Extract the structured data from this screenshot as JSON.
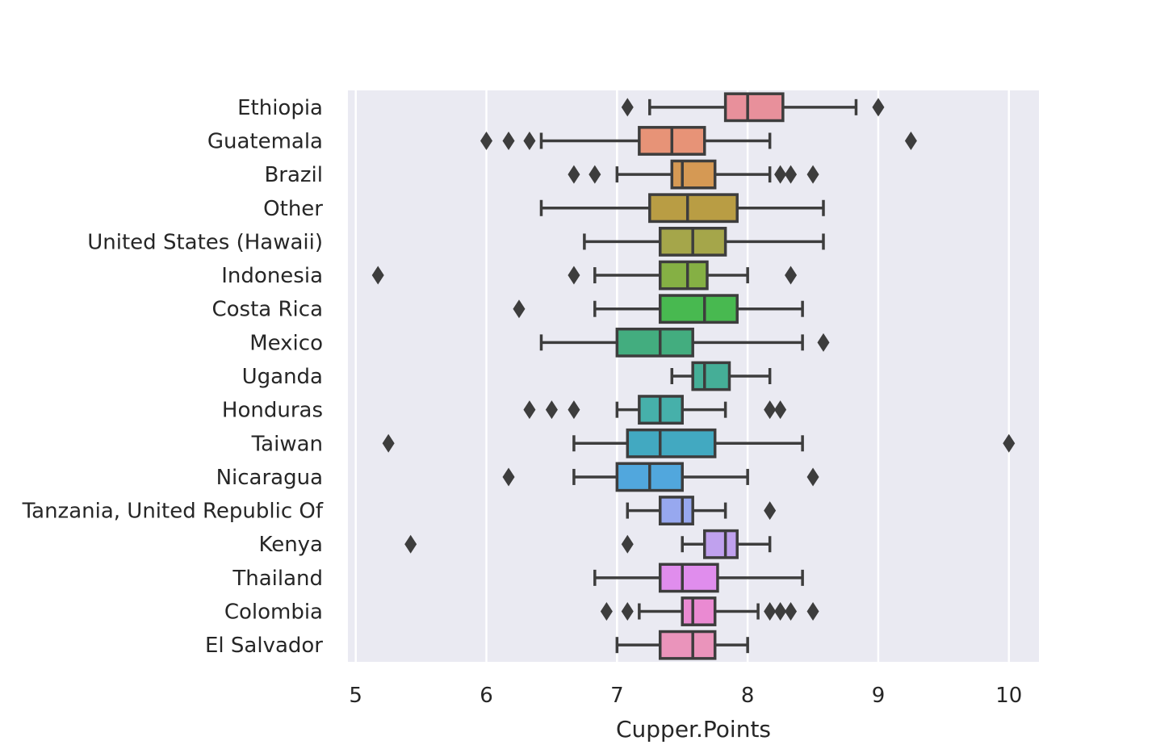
{
  "chart_data": {
    "type": "box",
    "orientation": "horizontal",
    "xlabel": "Cupper.Points",
    "ylabel": "",
    "xlim": [
      4.94,
      10.23
    ],
    "x_ticks": [
      5,
      6,
      7,
      8,
      9,
      10
    ],
    "grid": true,
    "legend": "none",
    "colors": {
      "background": "#eaeaf2",
      "grid": "#ffffff",
      "box_edge": "#3d3d3d",
      "text": "#262626"
    },
    "categories": [
      {
        "name": "Ethiopia",
        "color": "#e8909b",
        "whisker_low": 7.25,
        "q1": 7.83,
        "median": 8.0,
        "q3": 8.27,
        "whisker_high": 8.83,
        "outliers": [
          7.08,
          9.0
        ]
      },
      {
        "name": "Guatemala",
        "color": "#e79377",
        "whisker_low": 6.42,
        "q1": 7.17,
        "median": 7.42,
        "q3": 7.67,
        "whisker_high": 8.17,
        "outliers": [
          6.0,
          6.17,
          6.33,
          9.25
        ]
      },
      {
        "name": "Brazil",
        "color": "#d59954",
        "whisker_low": 7.0,
        "q1": 7.42,
        "median": 7.5,
        "q3": 7.75,
        "whisker_high": 8.17,
        "outliers": [
          6.67,
          6.83,
          8.25,
          8.33,
          8.5
        ]
      },
      {
        "name": "Other",
        "color": "#b99d44",
        "whisker_low": 6.42,
        "q1": 7.25,
        "median": 7.54,
        "q3": 7.92,
        "whisker_high": 8.58,
        "outliers": []
      },
      {
        "name": "United States (Hawaii)",
        "color": "#a5a64a",
        "whisker_low": 6.75,
        "q1": 7.33,
        "median": 7.58,
        "q3": 7.83,
        "whisker_high": 8.58,
        "outliers": []
      },
      {
        "name": "Indonesia",
        "color": "#85b044",
        "whisker_low": 6.83,
        "q1": 7.33,
        "median": 7.54,
        "q3": 7.69,
        "whisker_high": 8.0,
        "outliers": [
          5.17,
          6.67,
          8.33
        ]
      },
      {
        "name": "Costa Rica",
        "color": "#48b950",
        "whisker_low": 6.83,
        "q1": 7.33,
        "median": 7.67,
        "q3": 7.92,
        "whisker_high": 8.42,
        "outliers": [
          6.25
        ]
      },
      {
        "name": "Mexico",
        "color": "#43ad7f",
        "whisker_low": 6.42,
        "q1": 7.0,
        "median": 7.33,
        "q3": 7.58,
        "whisker_high": 8.42,
        "outliers": [
          8.58
        ]
      },
      {
        "name": "Uganda",
        "color": "#45ae97",
        "whisker_low": 7.42,
        "q1": 7.58,
        "median": 7.67,
        "q3": 7.86,
        "whisker_high": 8.17,
        "outliers": []
      },
      {
        "name": "Honduras",
        "color": "#46b0aa",
        "whisker_low": 7.0,
        "q1": 7.17,
        "median": 7.33,
        "q3": 7.5,
        "whisker_high": 7.83,
        "outliers": [
          6.33,
          6.5,
          6.67,
          8.17,
          8.25
        ]
      },
      {
        "name": "Taiwan",
        "color": "#42a9c1",
        "whisker_low": 6.67,
        "q1": 7.08,
        "median": 7.33,
        "q3": 7.75,
        "whisker_high": 8.42,
        "outliers": [
          5.25,
          10.0
        ]
      },
      {
        "name": "Nicaragua",
        "color": "#51a7dd",
        "whisker_low": 6.67,
        "q1": 7.0,
        "median": 7.25,
        "q3": 7.5,
        "whisker_high": 8.0,
        "outliers": [
          6.17,
          8.5
        ]
      },
      {
        "name": "Tanzania, United Republic Of",
        "color": "#97a8ef",
        "whisker_low": 7.08,
        "q1": 7.33,
        "median": 7.5,
        "q3": 7.58,
        "whisker_high": 7.83,
        "outliers": [
          8.17
        ]
      },
      {
        "name": "Kenya",
        "color": "#c0a1ee",
        "whisker_low": 7.5,
        "q1": 7.67,
        "median": 7.83,
        "q3": 7.92,
        "whisker_high": 8.17,
        "outliers": [
          5.42,
          7.08
        ]
      },
      {
        "name": "Thailand",
        "color": "#e08ded",
        "whisker_low": 6.83,
        "q1": 7.33,
        "median": 7.5,
        "q3": 7.77,
        "whisker_high": 8.42,
        "outliers": []
      },
      {
        "name": "Colombia",
        "color": "#ea8ad2",
        "whisker_low": 7.17,
        "q1": 7.5,
        "median": 7.58,
        "q3": 7.75,
        "whisker_high": 8.08,
        "outliers": [
          6.92,
          7.08,
          8.17,
          8.25,
          8.33,
          8.5
        ]
      },
      {
        "name": "El Salvador",
        "color": "#ea94bb",
        "whisker_low": 7.0,
        "q1": 7.33,
        "median": 7.58,
        "q3": 7.75,
        "whisker_high": 8.0,
        "outliers": []
      }
    ]
  }
}
